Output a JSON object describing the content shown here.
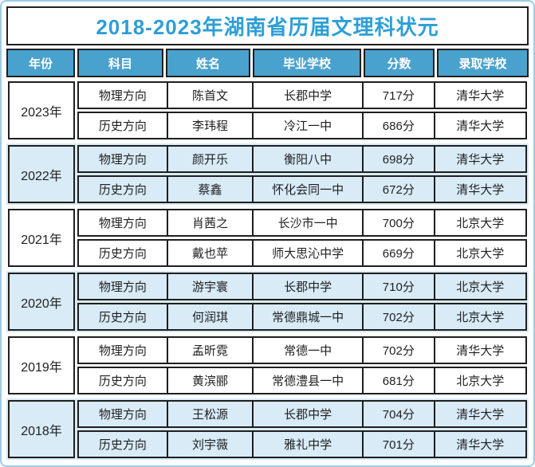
{
  "title": "2018-2023年湖南省历届文理科状元",
  "columns": [
    "年份",
    "科目",
    "姓名",
    "毕业学校",
    "分数",
    "录取学校"
  ],
  "groups": [
    {
      "year": "2023年",
      "rows": [
        {
          "subject": "物理方向",
          "name": "陈首文",
          "school": "长郡中学",
          "score": "717分",
          "university": "清华大学"
        },
        {
          "subject": "历史方向",
          "name": "李玮程",
          "school": "冷江一中",
          "score": "686分",
          "university": "清华大学"
        }
      ]
    },
    {
      "year": "2022年",
      "rows": [
        {
          "subject": "物理方向",
          "name": "颜开乐",
          "school": "衡阳八中",
          "score": "698分",
          "university": "清华大学"
        },
        {
          "subject": "历史方向",
          "name": "蔡鑫",
          "school": "怀化会同一中",
          "score": "672分",
          "university": "清华大学"
        }
      ]
    },
    {
      "year": "2021年",
      "rows": [
        {
          "subject": "物理方向",
          "name": "肖茜之",
          "school": "长沙市一中",
          "score": "700分",
          "university": "北京大学"
        },
        {
          "subject": "历史方向",
          "name": "戴也苹",
          "school": "师大思沁中学",
          "score": "669分",
          "university": "北京大学"
        }
      ]
    },
    {
      "year": "2020年",
      "rows": [
        {
          "subject": "物理方向",
          "name": "游宇寰",
          "school": "长郡中学",
          "score": "710分",
          "university": "北京大学"
        },
        {
          "subject": "历史方向",
          "name": "何润琪",
          "school": "常德鼎城一中",
          "score": "702分",
          "university": "北京大学"
        }
      ]
    },
    {
      "year": "2019年",
      "rows": [
        {
          "subject": "物理方向",
          "name": "孟昕霓",
          "school": "常德一中",
          "score": "702分",
          "university": "清华大学"
        },
        {
          "subject": "历史方向",
          "name": "黄滨郦",
          "school": "常德澧县一中",
          "score": "681分",
          "university": "北京大学"
        }
      ]
    },
    {
      "year": "2018年",
      "rows": [
        {
          "subject": "物理方向",
          "name": "王松源",
          "school": "长郡中学",
          "score": "704分",
          "university": "清华大学"
        },
        {
          "subject": "历史方向",
          "name": "刘宇薇",
          "school": "雅礼中学",
          "score": "701分",
          "university": "清华大学"
        }
      ]
    }
  ],
  "colors": {
    "title_text": "#2d9fd6",
    "header_bg": "#49a2ce",
    "header_text": "#ffffff",
    "shaded_block_bg": "#d8ebf7",
    "cell_border": "#1f1f1f",
    "outer_frame": "#9dcbe7"
  },
  "chart_data": {
    "type": "table",
    "title": "2018-2023年湖南省历届文理科状元",
    "columns": [
      "年份",
      "科目",
      "姓名",
      "毕业学校",
      "分数",
      "录取学校"
    ],
    "rows": [
      [
        "2023年",
        "物理方向",
        "陈首文",
        "长郡中学",
        "717分",
        "清华大学"
      ],
      [
        "2023年",
        "历史方向",
        "李玮程",
        "冷江一中",
        "686分",
        "清华大学"
      ],
      [
        "2022年",
        "物理方向",
        "颜开乐",
        "衡阳八中",
        "698分",
        "清华大学"
      ],
      [
        "2022年",
        "历史方向",
        "蔡鑫",
        "怀化会同一中",
        "672分",
        "清华大学"
      ],
      [
        "2021年",
        "物理方向",
        "肖茜之",
        "长沙市一中",
        "700分",
        "北京大学"
      ],
      [
        "2021年",
        "历史方向",
        "戴也苹",
        "师大思沁中学",
        "669分",
        "北京大学"
      ],
      [
        "2020年",
        "物理方向",
        "游宇寰",
        "长郡中学",
        "710分",
        "北京大学"
      ],
      [
        "2020年",
        "历史方向",
        "何润琪",
        "常德鼎城一中",
        "702分",
        "北京大学"
      ],
      [
        "2019年",
        "物理方向",
        "孟昕霓",
        "常德一中",
        "702分",
        "清华大学"
      ],
      [
        "2019年",
        "历史方向",
        "黄滨郦",
        "常德澧县一中",
        "681分",
        "北京大学"
      ],
      [
        "2018年",
        "物理方向",
        "王松源",
        "长郡中学",
        "704分",
        "清华大学"
      ],
      [
        "2018年",
        "历史方向",
        "刘宇薇",
        "雅礼中学",
        "701分",
        "清华大学"
      ]
    ]
  }
}
